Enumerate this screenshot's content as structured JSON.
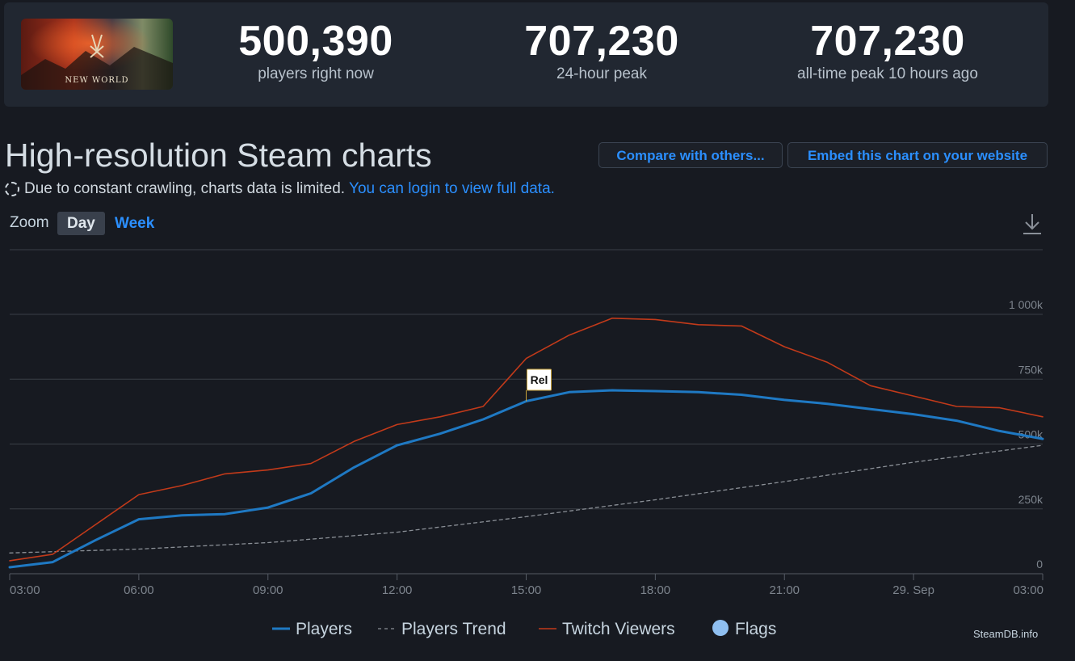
{
  "header": {
    "game_logo_text": "NEW WORLD",
    "stats": [
      {
        "value": "500,390",
        "label": "players right now"
      },
      {
        "value": "707,230",
        "label": "24-hour peak"
      },
      {
        "value": "707,230",
        "label": "all-time peak 10 hours ago"
      }
    ]
  },
  "page": {
    "title": "High-resolution Steam charts",
    "compare_label": "Compare with others...",
    "embed_label": "Embed this chart on your website",
    "notice_text": "Due to constant crawling, charts data is limited.",
    "notice_link": "You can login to view full data.",
    "zoom_label": "Zoom",
    "zoom_day": "Day",
    "zoom_week": "Week",
    "download_icon": "download-icon",
    "credit": "SteamDB.info"
  },
  "colors": {
    "players": "#1f79c3",
    "twitch": "#c23a1a",
    "trend": "#8a8f96",
    "flags": "#8fbff0",
    "grid": "#3a3f47"
  },
  "chart_data": {
    "type": "line",
    "title": "",
    "xlabel": "",
    "ylabel": "",
    "ylim": [
      0,
      1000000
    ],
    "y_ticks": [
      {
        "value": 0,
        "label": "0"
      },
      {
        "value": 250000,
        "label": "250k"
      },
      {
        "value": 500000,
        "label": "500k"
      },
      {
        "value": 750000,
        "label": "750k"
      },
      {
        "value": 1000000,
        "label": "1 000k"
      }
    ],
    "x_ticks": [
      {
        "hour": 3,
        "label": "03:00"
      },
      {
        "hour": 6,
        "label": "06:00"
      },
      {
        "hour": 9,
        "label": "09:00"
      },
      {
        "hour": 12,
        "label": "12:00"
      },
      {
        "hour": 15,
        "label": "15:00"
      },
      {
        "hour": 18,
        "label": "18:00"
      },
      {
        "hour": 21,
        "label": "21:00"
      },
      {
        "hour": 24,
        "label": "29. Sep"
      },
      {
        "hour": 27,
        "label": "03:00"
      }
    ],
    "grid": true,
    "legend_position": "bottom",
    "series": [
      {
        "name": "Players",
        "x": [
          3,
          4,
          5,
          6,
          7,
          8,
          9,
          10,
          11,
          12,
          13,
          14,
          15,
          16,
          17,
          18,
          19,
          20,
          21,
          22,
          23,
          24,
          25,
          26,
          27
        ],
        "values": [
          25000,
          45000,
          130000,
          210000,
          225000,
          230000,
          255000,
          310000,
          410000,
          495000,
          540000,
          595000,
          665000,
          700000,
          707230,
          704000,
          700000,
          690000,
          670000,
          655000,
          635000,
          615000,
          590000,
          550000,
          520000
        ]
      },
      {
        "name": "Players Trend",
        "x": [
          3,
          6,
          9,
          12,
          15,
          18,
          21,
          24,
          27
        ],
        "values": [
          80000,
          95000,
          120000,
          160000,
          220000,
          285000,
          355000,
          430000,
          495000
        ]
      },
      {
        "name": "Twitch Viewers",
        "x": [
          3,
          4,
          5,
          6,
          7,
          8,
          9,
          10,
          11,
          12,
          13,
          14,
          15,
          16,
          17,
          18,
          19,
          20,
          21,
          22,
          23,
          24,
          25,
          26,
          27
        ],
        "values": [
          50000,
          75000,
          190000,
          305000,
          340000,
          385000,
          400000,
          425000,
          510000,
          575000,
          605000,
          645000,
          830000,
          920000,
          985000,
          980000,
          960000,
          955000,
          875000,
          815000,
          725000,
          685000,
          645000,
          640000,
          605000
        ]
      }
    ],
    "flags": [
      {
        "hour": 15,
        "label": "Rel"
      }
    ],
    "legend": [
      "Players",
      "Players Trend",
      "Twitch Viewers",
      "Flags"
    ]
  }
}
